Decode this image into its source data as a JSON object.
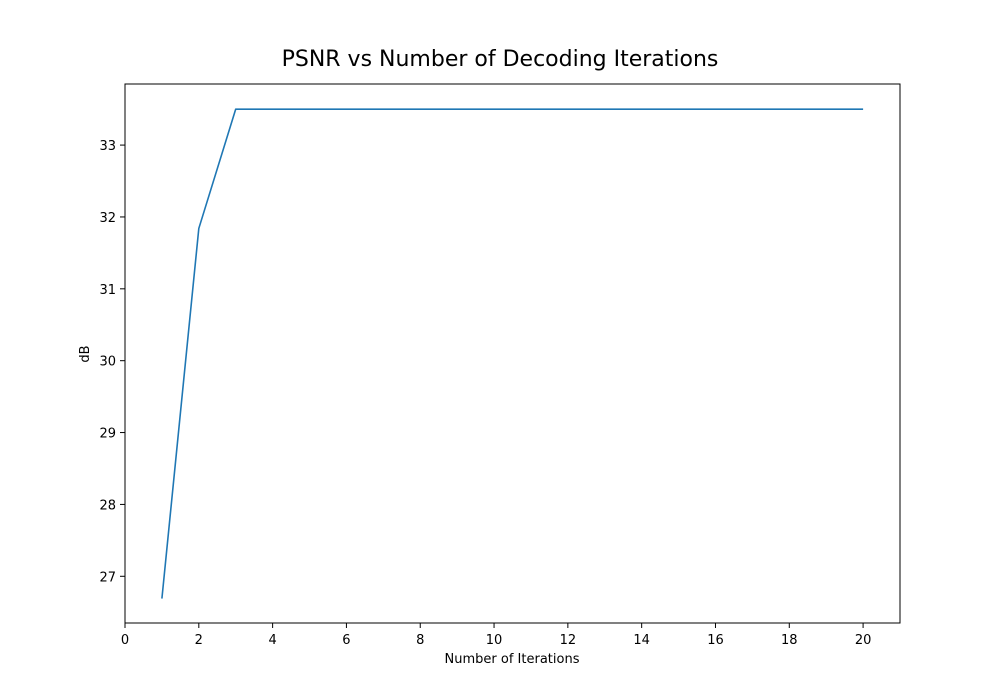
{
  "chart_data": {
    "type": "line",
    "title": "PSNR vs Number of Decoding Iterations",
    "xlabel": "Number of Iterations",
    "ylabel": "dB",
    "xlim": [
      0,
      21
    ],
    "ylim": [
      26.35,
      33.85
    ],
    "xticks": [
      0,
      2,
      4,
      6,
      8,
      10,
      12,
      14,
      16,
      18,
      20
    ],
    "yticks": [
      27,
      28,
      29,
      30,
      31,
      32,
      33
    ],
    "grid": false,
    "series": [
      {
        "color": "#1f77b4",
        "x": [
          1,
          2,
          3,
          4,
          5,
          6,
          7,
          8,
          9,
          10,
          11,
          12,
          13,
          14,
          15,
          16,
          17,
          18,
          19,
          20
        ],
        "y": [
          26.69,
          31.84,
          33.5,
          33.5,
          33.5,
          33.5,
          33.5,
          33.5,
          33.5,
          33.5,
          33.5,
          33.5,
          33.5,
          33.5,
          33.5,
          33.5,
          33.5,
          33.5,
          33.5,
          33.5
        ]
      }
    ]
  }
}
